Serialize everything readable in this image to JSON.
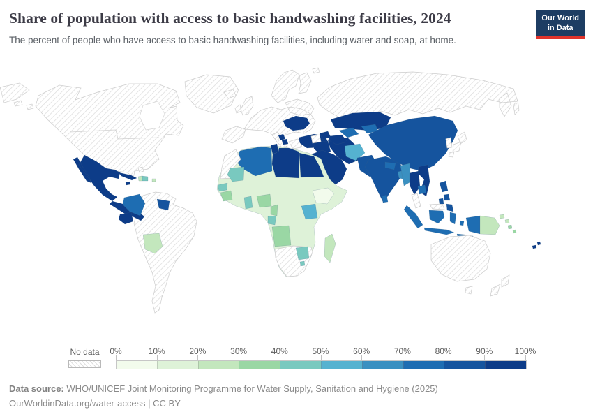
{
  "header": {
    "title": "Share of population with access to basic handwashing facilities, 2024",
    "subtitle": "The percent of people who have access to basic handwashing facilities, including water and soap, at home.",
    "logo": {
      "line1": "Our World",
      "line2": "in Data",
      "bg_color": "#1d3d63",
      "accent_color": "#e0342c"
    }
  },
  "legend": {
    "no_data_label": "No data",
    "tick_labels": [
      "0%",
      "10%",
      "20%",
      "30%",
      "40%",
      "50%",
      "60%",
      "70%",
      "80%",
      "90%",
      "100%"
    ]
  },
  "footer": {
    "source_label": "Data source:",
    "source_text": " WHO/UNICEF Joint Monitoring Programme for Water Supply, Sanitation and Hygiene (2025)",
    "note_text": "OurWorldinData.org/water-access | CC BY"
  },
  "chart_data": {
    "type": "choropleth",
    "title": "Share of population with access to basic handwashing facilities, 2024",
    "unit": "% of population",
    "year": "2024",
    "legend_position": "bottom",
    "color_scale": {
      "bucket_size": 10,
      "range": [
        0,
        100
      ],
      "colors": [
        "#f2fbec",
        "#def2d8",
        "#c3e7bd",
        "#9ad7a4",
        "#79c9bf",
        "#55b2d0",
        "#3a90c1",
        "#1e6db2",
        "#15549e",
        "#0d3c88"
      ],
      "no_data": "hatched",
      "no_data_hatch_color": "#dcdcdc"
    },
    "regions": {
      "greenland": null,
      "north_america": null,
      "bahamas": null,
      "mexico": 95,
      "central_america": 92,
      "cuba": 92,
      "jamaica": 92,
      "haiti": 25,
      "dominican_republic": 45,
      "puerto_rico": 25,
      "colombia": 75,
      "ecuador": 92,
      "guyana_suriname": 85,
      "bolivia": 25,
      "south_america_other": null,
      "europe_most": null,
      "ukraine": 92,
      "serbia_bosnia": 92,
      "russia": null,
      "turkey": 92,
      "caucasus": 92,
      "syria": null,
      "iraq": 95,
      "iran": 95,
      "arabia": 95,
      "yemen": 65,
      "morocco_wsahara": null,
      "algeria": 75,
      "tunisia": 95,
      "libya": 95,
      "egypt": 95,
      "africa_sahel_central": 15,
      "mauritania": 45,
      "senegal": 45,
      "guinea": 35,
      "ghana": 45,
      "nigeria": 35,
      "cameroon": 35,
      "gabon": 45,
      "ethiopia": 8,
      "kenya": 55,
      "angola": 35,
      "zimbabwe": 45,
      "eswatini": 45,
      "southern_africa": null,
      "madagascar": 25,
      "kazakhstan": 95,
      "uzbekistan": 75,
      "turkmenistan": 95,
      "tajikistan_kyrgyzstan": 75,
      "afghanistan": 55,
      "pakistan": 85,
      "india": 85,
      "nepal": 75,
      "bangladesh": 65,
      "sri_lanka": 75,
      "china_mongolia": 85,
      "myanmar": 65,
      "thailand": 92,
      "vietnam_laos": 92,
      "cambodia": 75,
      "malaysia": null,
      "philippines": 88,
      "indonesia": 75,
      "papua_indonesia": 75,
      "papua_new_guinea": 25,
      "solomon_islands": 35,
      "fiji": 92,
      "japan": null,
      "korea": null,
      "australia": null,
      "new_zealand": null
    }
  }
}
